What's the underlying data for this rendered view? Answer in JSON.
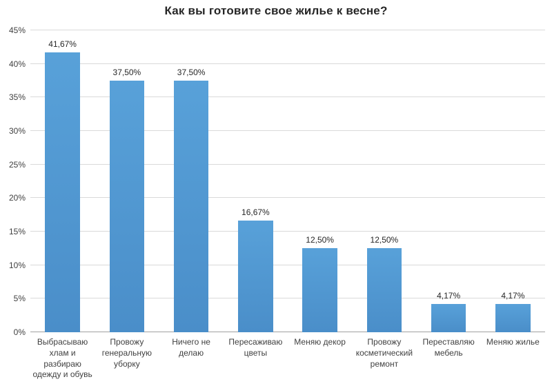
{
  "chart_data": {
    "type": "bar",
    "title": "Как вы готовите свое жилье к весне?",
    "categories": [
      "Выбрасываю хлам и разбираю одежду и обувь",
      "Провожу генеральную уборку",
      "Ничего не делаю",
      "Пересаживаю цветы",
      "Меняю декор",
      "Провожу косметический ремонт",
      "Переставляю мебель",
      "Меняю жилье"
    ],
    "values": [
      41.67,
      37.5,
      37.5,
      16.67,
      12.5,
      12.5,
      4.17,
      4.17
    ],
    "data_labels": [
      "41,67%",
      "37,50%",
      "37,50%",
      "16,67%",
      "12,50%",
      "12,50%",
      "4,17%",
      "4,17%"
    ],
    "y_ticks": [
      "0%",
      "5%",
      "10%",
      "15%",
      "20%",
      "25%",
      "30%",
      "35%",
      "40%",
      "45%"
    ],
    "ylim": [
      0,
      45
    ],
    "xlabel": "",
    "ylabel": "",
    "grid": true,
    "legend": "none",
    "bar_color": "#4e96d2",
    "gridline_color": "#d9d9d9"
  }
}
